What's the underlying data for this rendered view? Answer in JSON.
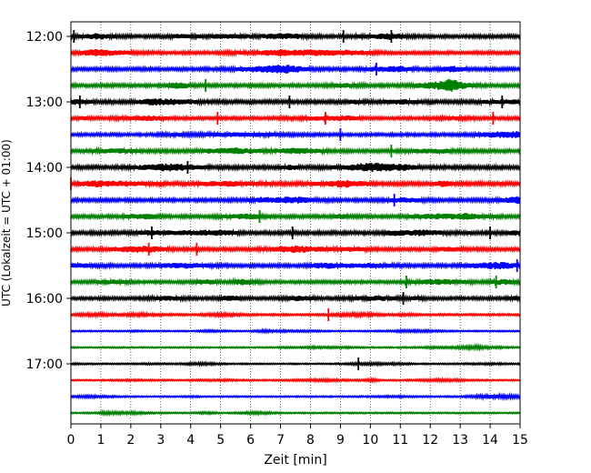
{
  "chart_data": {
    "type": "line",
    "xlabel": "Zeit  [min]",
    "ylabel": "UTC (Lokalzeit = UTC + 01:00)",
    "xlim": [
      0,
      15
    ],
    "x_ticks": [
      0,
      1,
      2,
      3,
      4,
      5,
      6,
      7,
      8,
      9,
      10,
      11,
      12,
      13,
      14,
      15
    ],
    "y_tick_labels": [
      "12:00",
      "13:00",
      "14:00",
      "15:00",
      "16:00",
      "17:00"
    ],
    "grid": "vertical dotted at each minute",
    "trace_interval_min": 15,
    "start_time": "12:00",
    "trace_colors": [
      "#000000",
      "#ff0000",
      "#0000ff",
      "#008000"
    ],
    "traces": [
      {
        "time": "12:00",
        "color": "#000000",
        "amp": 1.0,
        "spikes": [
          0.1,
          9.1,
          10.7
        ]
      },
      {
        "time": "12:15",
        "color": "#ff0000",
        "amp": 0.9,
        "spikes": []
      },
      {
        "time": "12:30",
        "color": "#0000ff",
        "amp": 1.0,
        "spikes": [
          10.2
        ]
      },
      {
        "time": "12:45",
        "color": "#008000",
        "amp": 1.0,
        "spikes": [
          4.5
        ]
      },
      {
        "time": "13:00",
        "color": "#000000",
        "amp": 1.1,
        "spikes": [
          0.3,
          7.3,
          14.4
        ]
      },
      {
        "time": "13:15",
        "color": "#ff0000",
        "amp": 0.9,
        "spikes": [
          4.9,
          8.5,
          14.1
        ]
      },
      {
        "time": "13:30",
        "color": "#0000ff",
        "amp": 0.9,
        "spikes": [
          9.0
        ]
      },
      {
        "time": "13:45",
        "color": "#008000",
        "amp": 1.0,
        "spikes": [
          10.7
        ]
      },
      {
        "time": "14:00",
        "color": "#000000",
        "amp": 1.1,
        "spikes": [
          3.9
        ]
      },
      {
        "time": "14:15",
        "color": "#ff0000",
        "amp": 1.1,
        "spikes": [
          0.0
        ]
      },
      {
        "time": "14:30",
        "color": "#0000ff",
        "amp": 1.0,
        "spikes": [
          10.8
        ]
      },
      {
        "time": "14:45",
        "color": "#008000",
        "amp": 1.0,
        "spikes": [
          6.3
        ]
      },
      {
        "time": "15:00",
        "color": "#000000",
        "amp": 1.1,
        "spikes": [
          2.7,
          7.4,
          14.0
        ]
      },
      {
        "time": "15:15",
        "color": "#ff0000",
        "amp": 1.0,
        "spikes": [
          2.6,
          4.2
        ]
      },
      {
        "time": "15:30",
        "color": "#0000ff",
        "amp": 1.0,
        "spikes": [
          14.9
        ]
      },
      {
        "time": "15:45",
        "color": "#008000",
        "amp": 0.9,
        "spikes": [
          11.2,
          14.2
        ]
      },
      {
        "time": "16:00",
        "color": "#000000",
        "amp": 0.9,
        "spikes": [
          11.1
        ]
      },
      {
        "time": "16:15",
        "color": "#ff0000",
        "amp": 0.6,
        "spikes": [
          8.6
        ]
      },
      {
        "time": "16:30",
        "color": "#0000ff",
        "amp": 0.4,
        "spikes": []
      },
      {
        "time": "16:45",
        "color": "#008000",
        "amp": 0.4,
        "spikes": []
      },
      {
        "time": "17:00",
        "color": "#000000",
        "amp": 0.4,
        "spikes": [
          9.6
        ]
      },
      {
        "time": "17:15",
        "color": "#ff0000",
        "amp": 0.4,
        "spikes": []
      },
      {
        "time": "17:30",
        "color": "#0000ff",
        "amp": 0.4,
        "spikes": []
      },
      {
        "time": "17:45",
        "color": "#008000",
        "amp": 0.4,
        "spikes": []
      }
    ]
  }
}
